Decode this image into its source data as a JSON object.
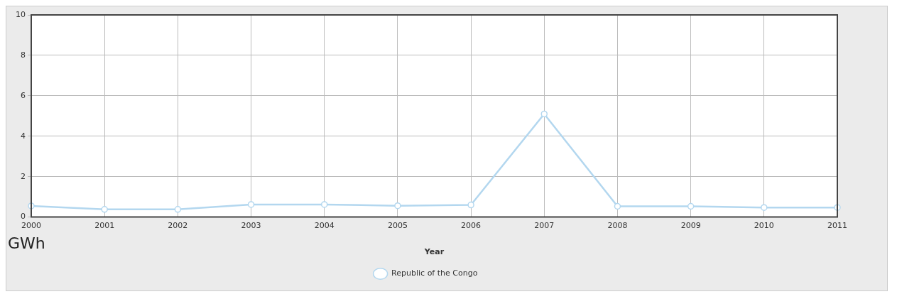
{
  "chart_data": {
    "type": "line",
    "xlabel": "Year",
    "ylabel": "GWh",
    "categories": [
      "2000",
      "2001",
      "2002",
      "2003",
      "2004",
      "2005",
      "2006",
      "2007",
      "2008",
      "2009",
      "2010",
      "2011"
    ],
    "series": [
      {
        "name": "Republic of the Congo",
        "color": "#b3d7ef",
        "values": [
          0.55,
          0.38,
          0.38,
          0.62,
          0.62,
          0.56,
          0.6,
          5.1,
          0.53,
          0.53,
          0.47,
          0.47
        ]
      }
    ],
    "ylim": [
      0,
      10
    ],
    "yticks": [
      0,
      2,
      4,
      6,
      8,
      10
    ],
    "grid": true,
    "legend": "bottom",
    "marker": "circle",
    "line_style": "solid"
  }
}
